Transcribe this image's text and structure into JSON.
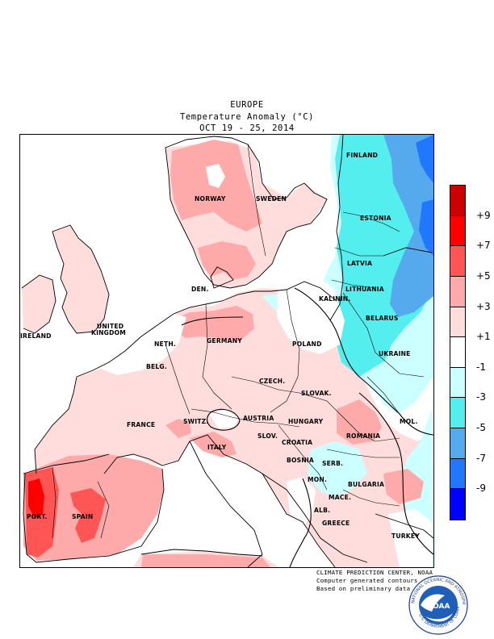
{
  "header": {
    "region": "EUROPE",
    "title": "Temperature Anomaly (°C)",
    "period": "OCT 19 - 25, 2014"
  },
  "map": {
    "labels": [
      {
        "id": "finland",
        "text": "FINLAND"
      },
      {
        "id": "norway",
        "text": "NORWAY"
      },
      {
        "id": "sweden",
        "text": "SWEDEN"
      },
      {
        "id": "estonia",
        "text": "ESTONIA"
      },
      {
        "id": "latvia",
        "text": "LATVIA"
      },
      {
        "id": "lithuania",
        "text": "LITHUANIA"
      },
      {
        "id": "kalinin",
        "text": "KALININ."
      },
      {
        "id": "belarus",
        "text": "BELARUS"
      },
      {
        "id": "den",
        "text": "DEN."
      },
      {
        "id": "ireland",
        "text": "IRELAND"
      },
      {
        "id": "uk1",
        "text": "UNITED"
      },
      {
        "id": "uk2",
        "text": "KINGDOM"
      },
      {
        "id": "neth",
        "text": "NETH."
      },
      {
        "id": "germany",
        "text": "GERMANY"
      },
      {
        "id": "poland",
        "text": "POLAND"
      },
      {
        "id": "belg",
        "text": "BELG."
      },
      {
        "id": "ukraine",
        "text": "UKRAINE"
      },
      {
        "id": "czech",
        "text": "CZECH."
      },
      {
        "id": "slovak",
        "text": "SLOVAK."
      },
      {
        "id": "france",
        "text": "FRANCE"
      },
      {
        "id": "switz",
        "text": "SWITZ."
      },
      {
        "id": "austria",
        "text": "AUSTRIA"
      },
      {
        "id": "hungary",
        "text": "HUNGARY"
      },
      {
        "id": "mol",
        "text": "MOL."
      },
      {
        "id": "romania",
        "text": "ROMANIA"
      },
      {
        "id": "slov",
        "text": "SLOV."
      },
      {
        "id": "croatia",
        "text": "CROATIA"
      },
      {
        "id": "italy",
        "text": "ITALY"
      },
      {
        "id": "bosnia",
        "text": "BOSNIA"
      },
      {
        "id": "serb",
        "text": "SERB."
      },
      {
        "id": "mon",
        "text": "MON."
      },
      {
        "id": "bulgaria",
        "text": "BULGARIA"
      },
      {
        "id": "mace",
        "text": "MACE."
      },
      {
        "id": "alb",
        "text": "ALB."
      },
      {
        "id": "greece",
        "text": "GREECE"
      },
      {
        "id": "turkey",
        "text": "TURKEY"
      },
      {
        "id": "port",
        "text": "PORT."
      },
      {
        "id": "spain",
        "text": "SPAIN"
      }
    ]
  },
  "legend": {
    "colors": [
      "#cc0000",
      "#ff0000",
      "#ff5555",
      "#ffaaaa",
      "#ffdddd",
      "#ffffff",
      "#ccffff",
      "#55eeee",
      "#55aaee",
      "#2277ff",
      "#0000ff"
    ],
    "labels": [
      "+9",
      "+7",
      "+5",
      "+3",
      "+1",
      "-1",
      "-3",
      "-5",
      "-7",
      "-9"
    ]
  },
  "credits": {
    "line1": "CLIMATE PREDICTION CENTER, NOAA",
    "line2": "Computer generated contours",
    "line3": "Based on preliminary data"
  },
  "logo": {
    "text": "NOAA",
    "ring_top": "NATIONAL OCEANIC AND ATMOSPHERIC ADMINISTRATION",
    "ring_bottom": "U.S. DEPARTMENT OF COMMERCE"
  }
}
